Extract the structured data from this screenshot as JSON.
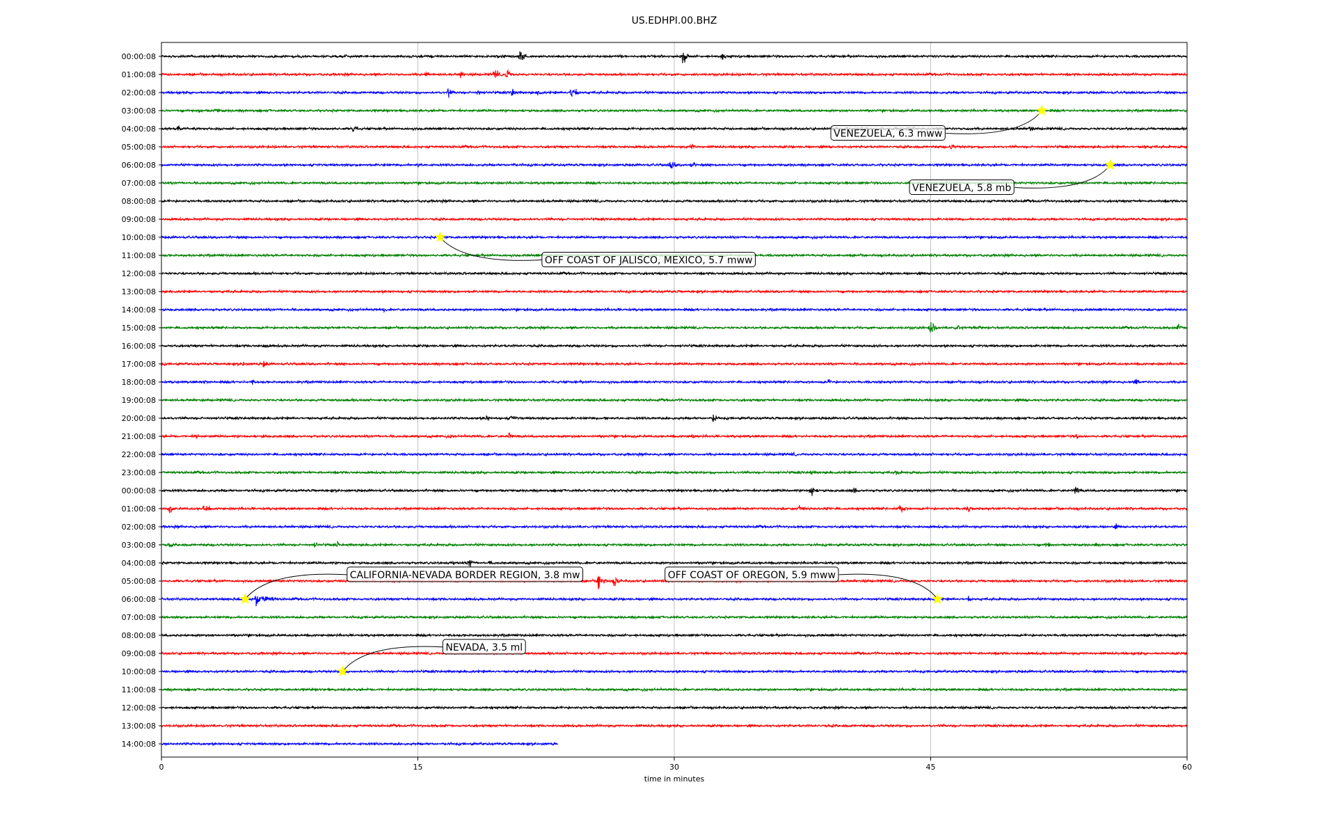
{
  "chart_data": {
    "type": "line",
    "title": "US.EDHPI.00.BHZ",
    "xlabel": "time in minutes",
    "ylabel": "",
    "xlim": [
      0,
      60
    ],
    "x_ticks": [
      0,
      15,
      30,
      45,
      60
    ],
    "grid_x": true,
    "trace_colors": [
      "#000000",
      "#ff0000",
      "#0000ff",
      "#008000"
    ],
    "rows": [
      {
        "label": "00:00:08",
        "events": [
          [
            21.0,
            2.0
          ],
          [
            30.5,
            2.2
          ],
          [
            32.8,
            1.0
          ],
          [
            10.8,
            0.5
          ]
        ]
      },
      {
        "label": "01:00:08",
        "events": [
          [
            15.5,
            1.2
          ],
          [
            17.5,
            1.0
          ],
          [
            19.5,
            1.6
          ],
          [
            20.2,
            1.8
          ]
        ]
      },
      {
        "label": "02:00:08",
        "events": [
          [
            16.8,
            1.2
          ],
          [
            18.5,
            1.0
          ],
          [
            20.5,
            1.2
          ],
          [
            22.0,
            1.0
          ],
          [
            24.0,
            2.2
          ]
        ]
      },
      {
        "label": "03:00:08",
        "events": [
          [
            2.2,
            1.0
          ],
          [
            3.2,
            1.2
          ]
        ]
      },
      {
        "label": "04:00:08",
        "events": [
          [
            1.0,
            1.0
          ],
          [
            2.0,
            0.8
          ],
          [
            10.0,
            0.8
          ],
          [
            11.2,
            1.4
          ],
          [
            47.2,
            0.8
          ],
          [
            50.8,
            1.2
          ]
        ]
      },
      {
        "label": "05:00:08",
        "events": [
          [
            31.0,
            1.0
          ],
          [
            46.2,
            1.0
          ],
          [
            57.5,
            0.8
          ],
          [
            39.0,
            0.6
          ]
        ]
      },
      {
        "label": "06:00:08",
        "events": [
          [
            15.0,
            0.8
          ],
          [
            20.5,
            0.8
          ],
          [
            29.8,
            1.4
          ],
          [
            31.0,
            1.0
          ],
          [
            13.0,
            0.6
          ]
        ]
      },
      {
        "label": "07:00:08",
        "events": []
      },
      {
        "label": "08:00:08",
        "events": [
          [
            22.3,
            0.8
          ]
        ]
      },
      {
        "label": "09:00:08",
        "events": []
      },
      {
        "label": "10:00:08",
        "events": [
          [
            16.3,
            0.6
          ]
        ]
      },
      {
        "label": "11:00:08",
        "events": []
      },
      {
        "label": "12:00:08",
        "events": []
      },
      {
        "label": "13:00:08",
        "events": []
      },
      {
        "label": "14:00:08",
        "events": [
          [
            13.0,
            0.6
          ]
        ]
      },
      {
        "label": "15:00:08",
        "events": [
          [
            45.0,
            2.0
          ],
          [
            46.5,
            1.0
          ],
          [
            47.8,
            0.8
          ],
          [
            59.5,
            1.0
          ]
        ]
      },
      {
        "label": "16:00:08",
        "events": [
          [
            6.0,
            0.8
          ]
        ]
      },
      {
        "label": "17:00:08",
        "events": [
          [
            4.8,
            0.8
          ],
          [
            6.0,
            1.0
          ],
          [
            7.5,
            0.6
          ]
        ]
      },
      {
        "label": "18:00:08",
        "events": [
          [
            2.5,
            0.8
          ],
          [
            5.3,
            1.0
          ],
          [
            39.0,
            0.8
          ],
          [
            42.0,
            0.6
          ],
          [
            57.0,
            1.0
          ]
        ]
      },
      {
        "label": "19:00:08",
        "events": [
          [
            2.4,
            0.6
          ],
          [
            29.0,
            0.6
          ],
          [
            47.5,
            0.6
          ],
          [
            50.5,
            0.6
          ]
        ]
      },
      {
        "label": "20:00:08",
        "events": [
          [
            19.0,
            0.8
          ],
          [
            20.5,
            1.2
          ],
          [
            26.0,
            0.6
          ],
          [
            32.3,
            1.2
          ]
        ]
      },
      {
        "label": "21:00:08",
        "events": [
          [
            2.0,
            0.8
          ],
          [
            6.0,
            0.6
          ],
          [
            17.0,
            0.8
          ],
          [
            20.3,
            1.2
          ],
          [
            31.0,
            1.0
          ],
          [
            53.5,
            0.8
          ]
        ]
      },
      {
        "label": "22:00:08",
        "events": [
          [
            13.2,
            0.6
          ],
          [
            37.0,
            0.6
          ]
        ]
      },
      {
        "label": "23:00:08",
        "events": [
          [
            38.0,
            0.8
          ],
          [
            43.0,
            0.8
          ]
        ]
      },
      {
        "label": "00:00:08",
        "events": [
          [
            38.0,
            1.6
          ],
          [
            40.5,
            0.8
          ],
          [
            53.5,
            1.6
          ]
        ]
      },
      {
        "label": "01:00:08",
        "events": [
          [
            0.5,
            1.2
          ],
          [
            2.5,
            1.6
          ],
          [
            34.5,
            0.6
          ],
          [
            37.3,
            1.2
          ],
          [
            38.8,
            1.2
          ],
          [
            43.2,
            1.6
          ],
          [
            47.2,
            1.2
          ]
        ]
      },
      {
        "label": "02:00:08",
        "events": [
          [
            55.8,
            1.0
          ],
          [
            53.5,
            0.6
          ]
        ]
      },
      {
        "label": "03:00:08",
        "events": [
          [
            0.5,
            0.8
          ],
          [
            9.0,
            1.0
          ],
          [
            10.3,
            0.8
          ],
          [
            51.8,
            1.0
          ],
          [
            54.6,
            0.6
          ]
        ]
      },
      {
        "label": "04:00:08",
        "events": [
          [
            17.0,
            0.8
          ],
          [
            18.0,
            1.4
          ],
          [
            19.2,
            0.8
          ]
        ]
      },
      {
        "label": "05:00:08",
        "events": [
          [
            25.6,
            2.6
          ],
          [
            26.5,
            1.6
          ]
        ]
      },
      {
        "label": "06:00:08",
        "events": [
          [
            5.5,
            2.6
          ],
          [
            6.0,
            1.8
          ],
          [
            6.5,
            1.0
          ],
          [
            47.2,
            0.8
          ]
        ]
      },
      {
        "label": "07:00:08",
        "events": []
      },
      {
        "label": "08:00:08",
        "events": []
      },
      {
        "label": "09:00:08",
        "events": []
      },
      {
        "label": "10:00:08",
        "events": []
      },
      {
        "label": "11:00:08",
        "events": []
      },
      {
        "label": "12:00:08",
        "events": []
      },
      {
        "label": "13:00:08",
        "events": []
      },
      {
        "label": "14:00:08",
        "events": [],
        "end_minute": 23.2
      }
    ],
    "annotations": [
      {
        "text": "VENEZUELA, 6.3 mww",
        "star_row": 3,
        "star_x": 51.5,
        "text_row": 4.25,
        "text_x": 39.2
      },
      {
        "text": "VENEZUELA, 5.8 mb",
        "star_row": 6,
        "star_x": 55.5,
        "text_row": 7.25,
        "text_x": 43.8
      },
      {
        "text": "OFF COAST OF JALISCO, MEXICO, 5.7 mww",
        "star_row": 10,
        "star_x": 16.3,
        "text_row": 11.25,
        "text_x": 22.3
      },
      {
        "text": "CALIFORNIA-NEVADA BORDER REGION, 3.8 mw",
        "star_row": 30,
        "star_x": 4.9,
        "text_row": 28.65,
        "text_x": 10.9
      },
      {
        "text": "OFF COAST OF OREGON, 5.9 mww",
        "star_row": 30,
        "star_x": 45.4,
        "text_row": 28.65,
        "text_x": 29.5
      },
      {
        "text": "NEVADA, 3.5 ml",
        "star_row": 34,
        "star_x": 10.6,
        "text_row": 32.65,
        "text_x": 16.5
      }
    ],
    "star_color": "#ffff00"
  }
}
